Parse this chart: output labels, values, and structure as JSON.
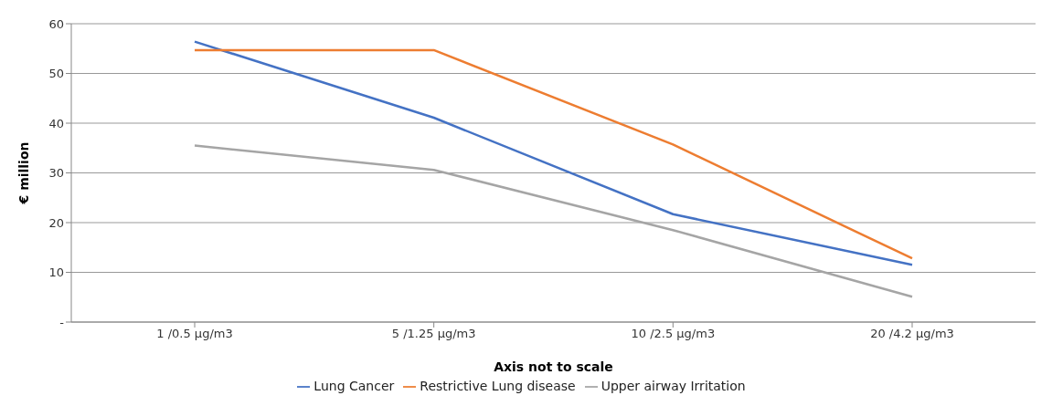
{
  "chart_data": {
    "type": "line",
    "xlabel": "Axis  not to scale",
    "ylabel": "€ million",
    "categories": [
      "1 /0.5 µg/m3",
      "5 /1.25 µg/m3",
      "10 /2.5 µg/m3",
      "20 /4.2 µg/m3"
    ],
    "series": [
      {
        "name": "Lung Cancer",
        "color": "#4472c4",
        "values": [
          56.4,
          41.1,
          21.7,
          11.5
        ]
      },
      {
        "name": "Restrictive Lung disease",
        "color": "#ed7d31",
        "values": [
          54.7,
          54.7,
          35.7,
          12.8
        ]
      },
      {
        "name": "Upper airway Irritation",
        "color": "#a5a5a5",
        "values": [
          35.5,
          30.6,
          18.5,
          5.1
        ]
      }
    ],
    "ylim": [
      0,
      60
    ],
    "yticks": [
      {
        "value": 0,
        "label": "-"
      },
      10,
      20,
      30,
      40,
      50,
      60
    ],
    "grid": "y",
    "legend": "bottom",
    "marker": "none",
    "line_style": "solid"
  }
}
